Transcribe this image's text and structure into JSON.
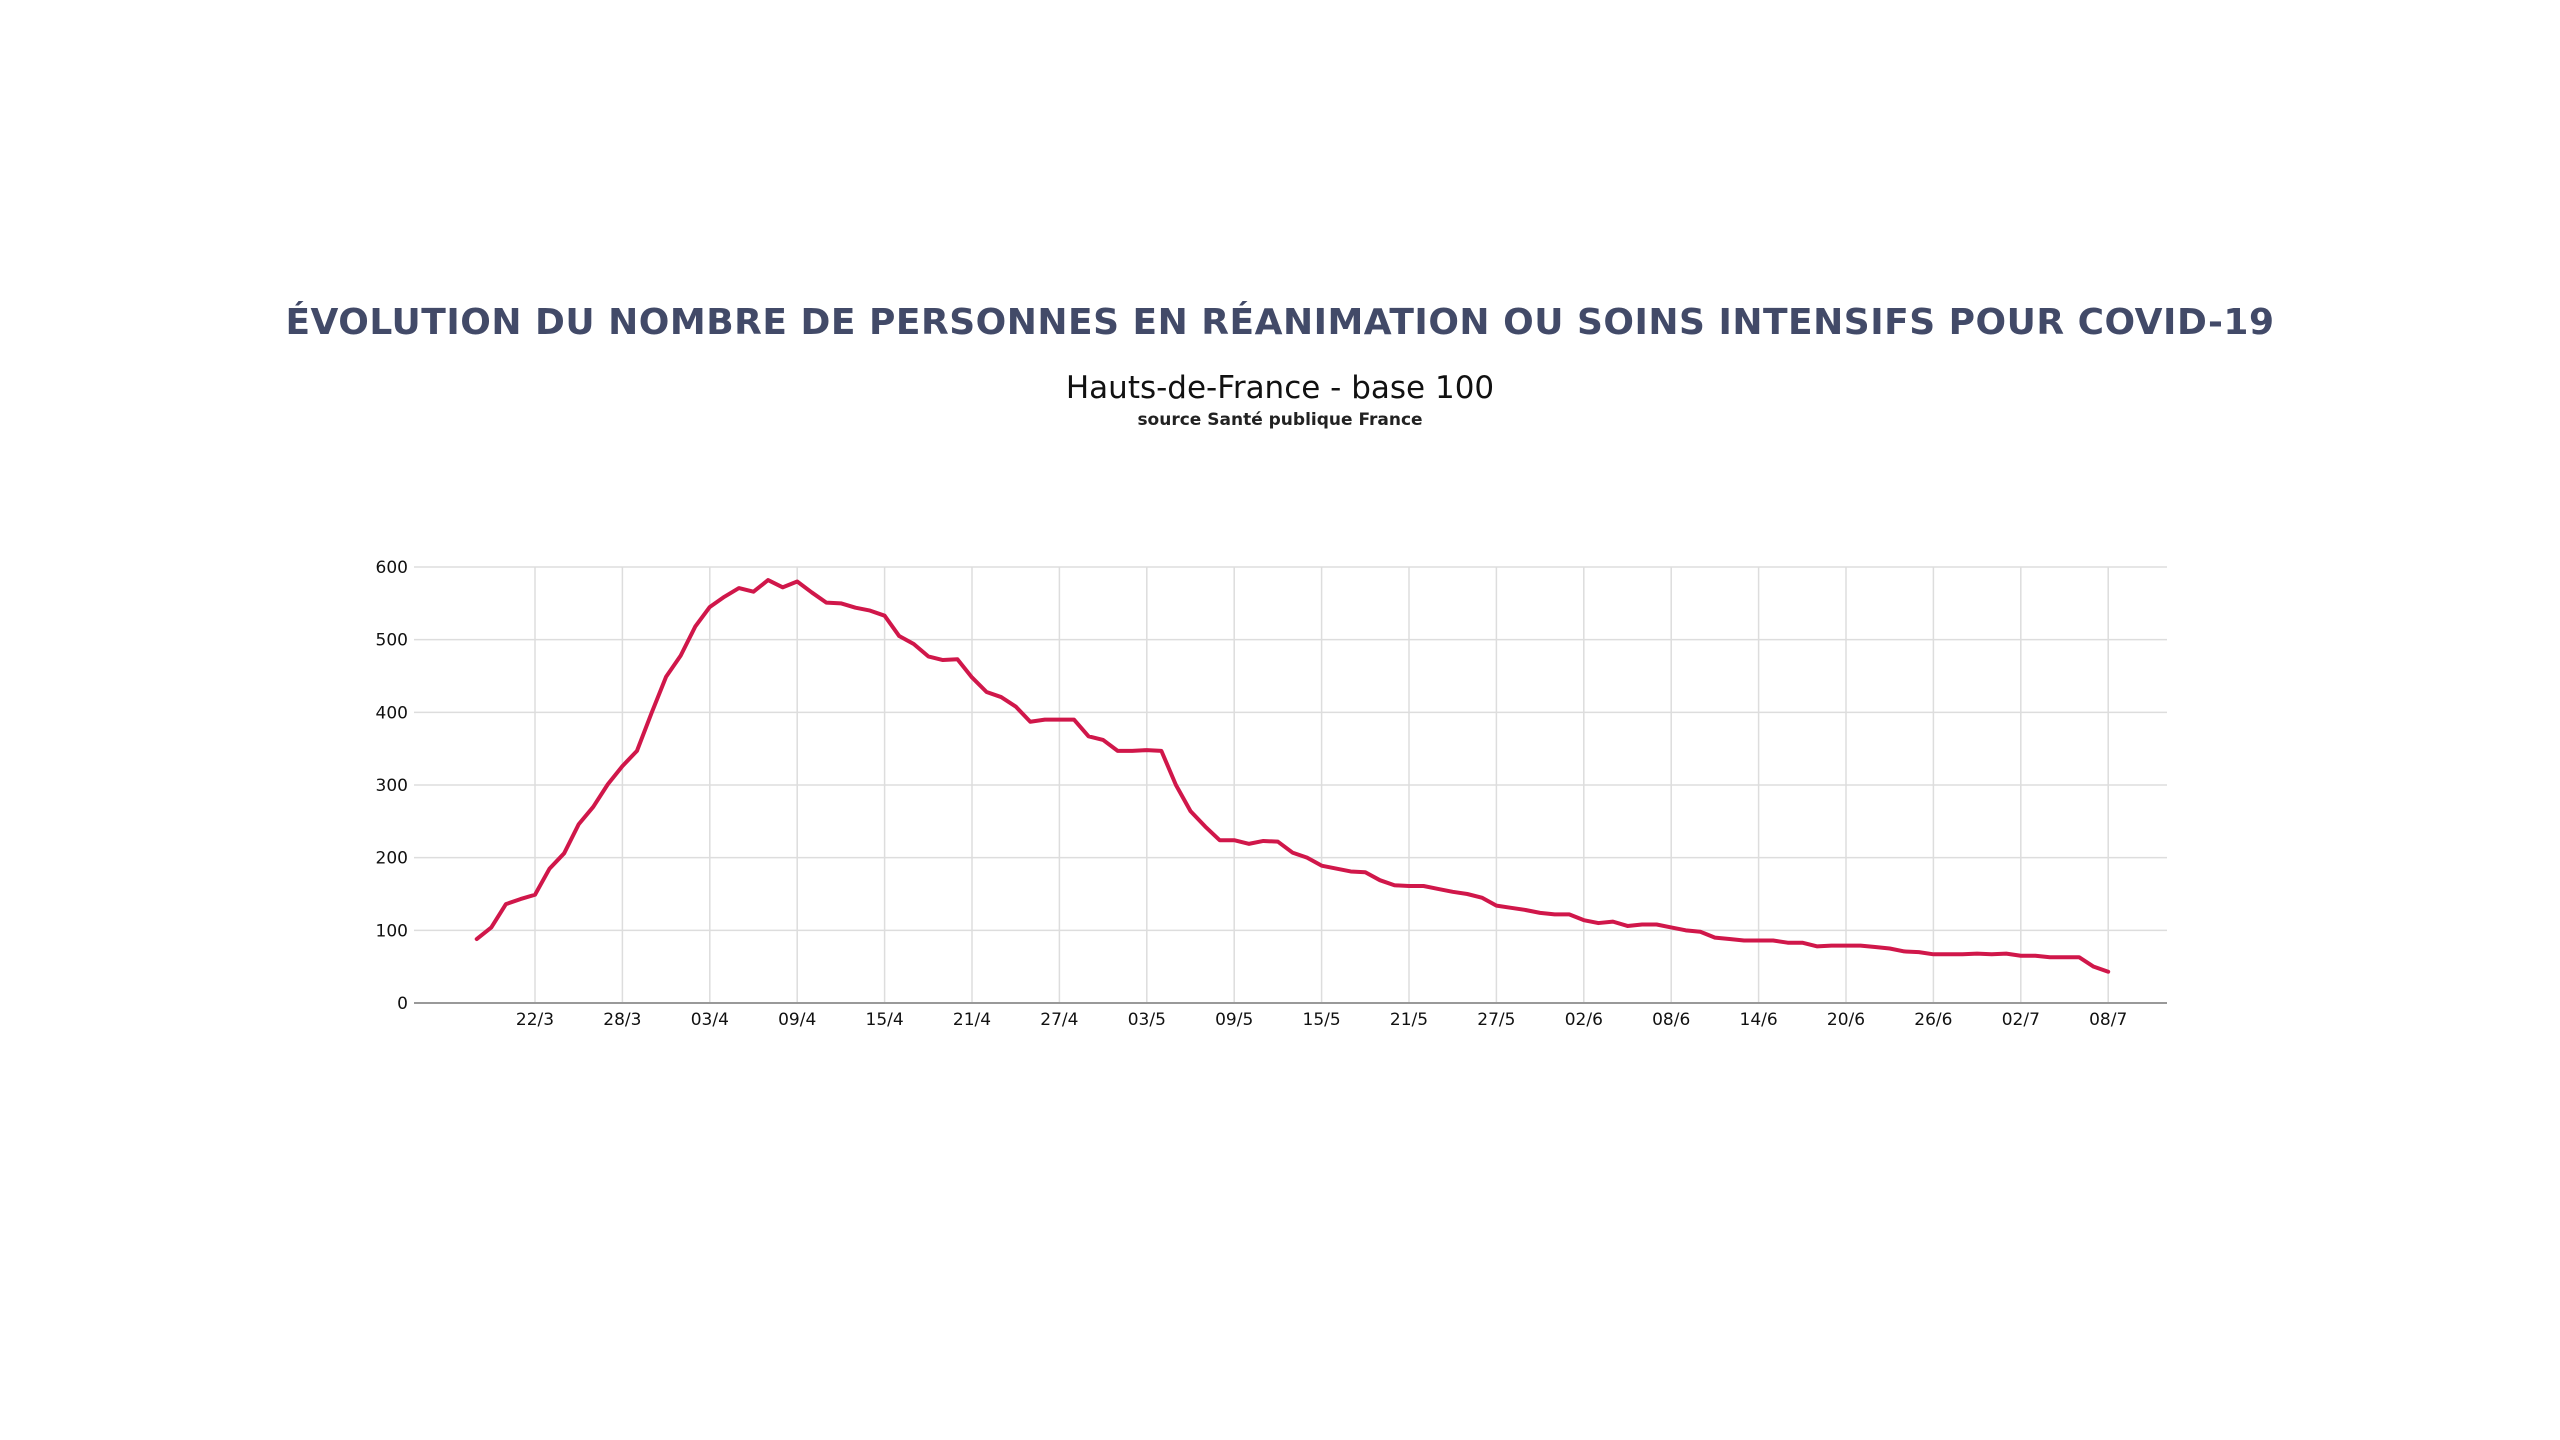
{
  "title": "ÉVOLUTION DU NOMBRE DE PERSONNES EN RÉANIMATION OU SOINS INTENSIFS POUR COVID-19",
  "subtitle": "Hauts-de-France - base 100",
  "source": "source Santé publique France",
  "colors": {
    "line": "#d0174a",
    "grid": "#dddddd",
    "axis": "#999999",
    "title": "#424a68"
  },
  "chart_data": {
    "type": "line",
    "title": "ÉVOLUTION DU NOMBRE DE PERSONNES EN RÉANIMATION OU SOINS INTENSIFS POUR COVID-19",
    "subtitle": "Hauts-de-France - base 100",
    "xlabel": "",
    "ylabel": "",
    "ylim": [
      0,
      600
    ],
    "yticks": [
      0,
      100,
      200,
      300,
      400,
      500,
      600
    ],
    "xticks": [
      "22/3",
      "28/3",
      "03/4",
      "09/4",
      "15/4",
      "21/4",
      "27/4",
      "03/5",
      "09/5",
      "15/5",
      "21/5",
      "27/5",
      "02/6",
      "08/6",
      "14/6",
      "20/6",
      "26/6",
      "02/7",
      "08/7"
    ],
    "grid": true,
    "x_start": "18/3",
    "x_end": "08/7",
    "series": [
      {
        "name": "",
        "values": [
          88,
          104,
          136,
          143,
          149,
          185,
          206,
          246,
          270,
          301,
          326,
          347,
          399,
          449,
          478,
          518,
          545,
          559,
          571,
          566,
          582,
          572,
          580,
          565,
          551,
          550,
          544,
          540,
          533,
          505,
          494,
          477,
          472,
          473,
          448,
          428,
          421,
          408,
          387,
          390,
          390,
          390,
          367,
          362,
          347,
          347,
          348,
          347,
          300,
          264,
          243,
          224,
          224,
          219,
          223,
          222,
          207,
          200,
          189,
          185,
          181,
          180,
          169,
          162,
          161,
          161,
          157,
          153,
          150,
          145,
          134,
          131,
          128,
          124,
          122,
          122,
          114,
          110,
          112,
          106,
          108,
          108,
          104,
          100,
          98,
          90,
          88,
          86,
          86,
          86,
          83,
          83,
          78,
          79,
          79,
          79,
          77,
          75,
          71,
          70,
          67,
          67,
          67,
          68,
          67,
          68,
          65,
          65,
          63,
          63,
          63,
          50,
          43
        ]
      }
    ]
  }
}
